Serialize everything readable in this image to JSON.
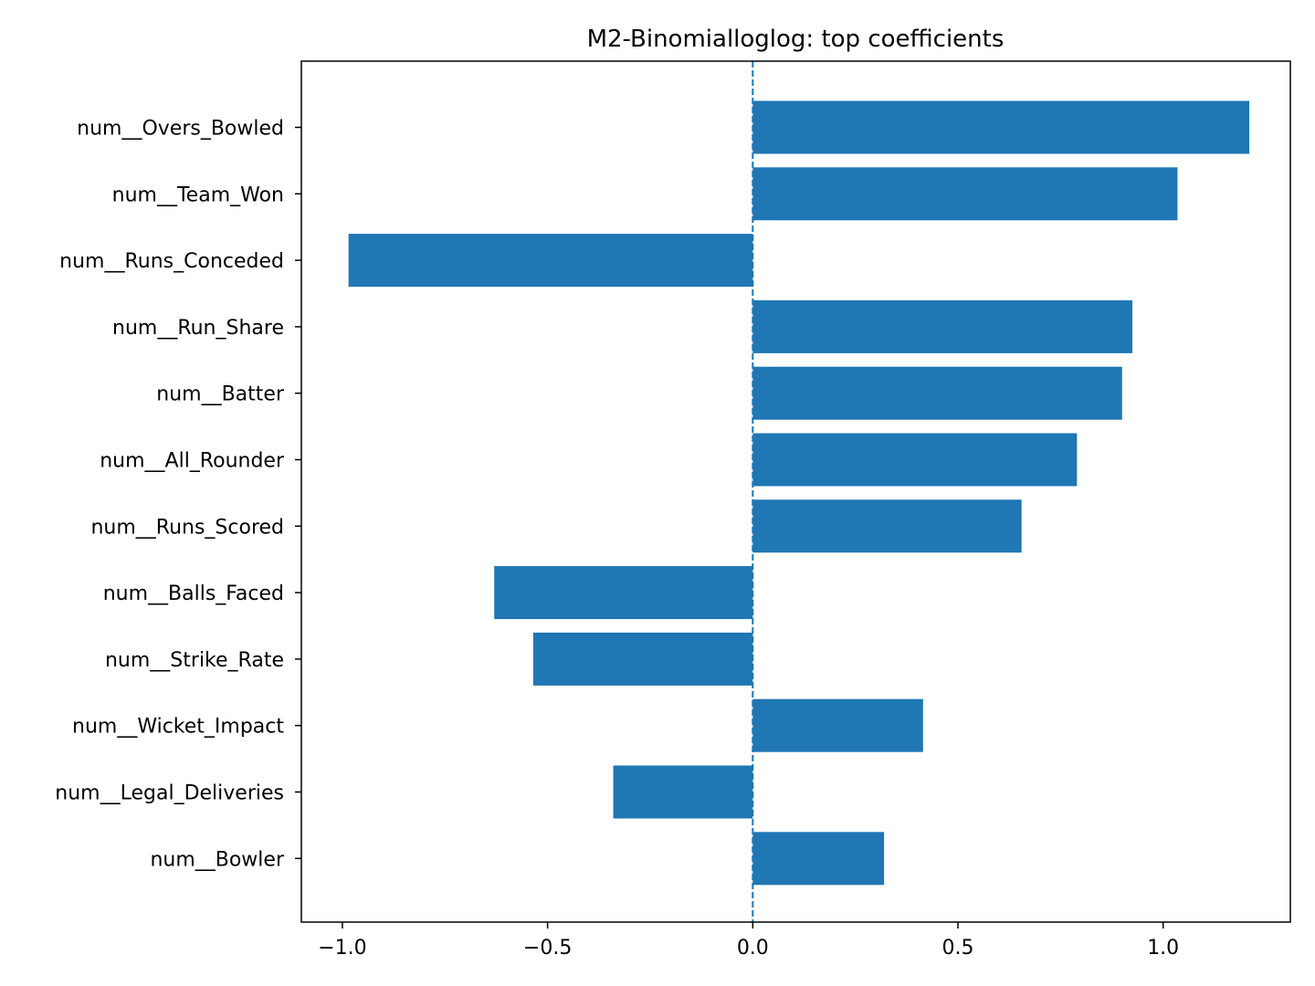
{
  "chart_data": {
    "type": "bar",
    "orientation": "horizontal",
    "title": "M2-Binomialloglog: top coefficients",
    "xlabel": "",
    "ylabel": "",
    "xlim": [
      -1.1,
      1.31
    ],
    "xticks": [
      -1.0,
      -0.5,
      0.0,
      0.5,
      1.0
    ],
    "xtick_labels": [
      "−1.0",
      "−0.5",
      "0.0",
      "0.5",
      "1.0"
    ],
    "categories": [
      "num__Overs_Bowled",
      "num__Team_Won",
      "num__Runs_Conceded",
      "num__Run_Share",
      "num__Batter",
      "num__All_Rounder",
      "num__Runs_Scored",
      "num__Balls_Faced",
      "num__Strike_Rate",
      "num__Wicket_Impact",
      "num__Legal_Deliveries",
      "num__Bowler"
    ],
    "values": [
      1.21,
      1.035,
      -0.985,
      0.925,
      0.9,
      0.79,
      0.655,
      -0.63,
      -0.535,
      0.415,
      -0.34,
      0.32
    ],
    "reference_line": {
      "x": 0.0,
      "style": "dashed"
    },
    "grid": false,
    "legend": "none",
    "colors": {
      "bar": "#1f77b4",
      "refline": "#1f77b4",
      "axes": "#000000"
    }
  }
}
